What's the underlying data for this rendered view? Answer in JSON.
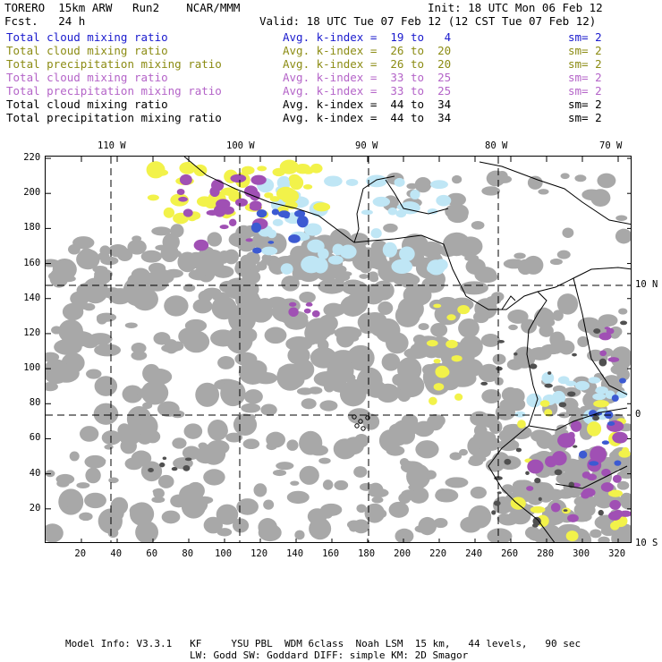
{
  "header": {
    "model": "TORERO  15km ARW   Run2    NCAR/MMM",
    "init": "Init: 18 UTC Mon 06 Feb 12",
    "fcst": "Fcst.   24 h",
    "valid": "Valid: 18 UTC Tue 07 Feb 12 (12 CST Tue 07 Feb 12)"
  },
  "legend": [
    {
      "field": "Total cloud mixing ratio",
      "index": "Avg. k-index =  19 to   4",
      "sm": "sm= 2",
      "color": "#1a1acd"
    },
    {
      "field": "Total cloud mixing ratio",
      "index": "Avg. k-index =  26 to  20",
      "sm": "sm= 2",
      "color": "#8c8c14"
    },
    {
      "field": "Total precipitation mixing ratio",
      "index": "Avg. k-index =  26 to  20",
      "sm": "sm= 2",
      "color": "#8c8c14"
    },
    {
      "field": "Total cloud mixing ratio",
      "index": "Avg. k-index =  33 to  25",
      "sm": "sm= 2",
      "color": "#b464c8"
    },
    {
      "field": "Total precipitation mixing ratio",
      "index": "Avg. k-index =  33 to  25",
      "sm": "sm= 2",
      "color": "#b464c8"
    },
    {
      "field": "Total cloud mixing ratio",
      "index": "Avg. k-index =  44 to  34",
      "sm": "sm= 2",
      "color": "#000000"
    },
    {
      "field": "Total precipitation mixing ratio",
      "index": "Avg. k-index =  44 to  34",
      "sm": "sm= 2",
      "color": "#000000"
    }
  ],
  "map": {
    "lon_labels": [
      "110 W",
      "100 W",
      "90 W",
      "80 W",
      "70 W"
    ],
    "lat_labels": [
      "10 N",
      "0",
      "10 S"
    ],
    "x_ticks": [
      "20",
      "40",
      "60",
      "80",
      "100",
      "120",
      "140",
      "160",
      "180",
      "200",
      "220",
      "240",
      "260",
      "280",
      "300",
      "320"
    ],
    "y_ticks": [
      "20",
      "40",
      "60",
      "80",
      "100",
      "120",
      "140",
      "160",
      "180",
      "200",
      "220"
    ],
    "colors": {
      "gray": "#a8a8a8",
      "dark": "#505050",
      "yellow": "#f2f24a",
      "purple": "#a050b4",
      "light_blue": "#bfe6f5",
      "blue": "#3c5ad2"
    }
  },
  "footer": {
    "line1": "Model Info: V3.3.1   KF     YSU PBL  WDM 6class  Noah LSM  15 km,   44 levels,   90 sec",
    "line2": "LW: Godd SW: Goddard DIFF: simple KM: 2D Smagor"
  }
}
